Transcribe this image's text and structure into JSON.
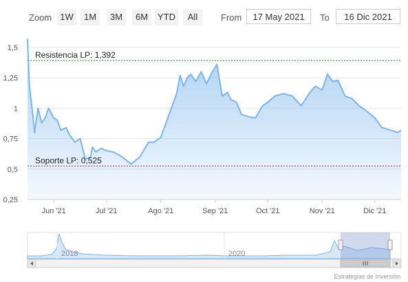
{
  "toolbar": {
    "zoom_label": "Zoom",
    "buttons": [
      "1W",
      "1M",
      "3M",
      "6M",
      "YTD",
      "All"
    ],
    "from_label": "From",
    "from_value": "17 May 2021",
    "to_label": "To",
    "to_value": "16 Dic 2021"
  },
  "credit": "Estrategias de Inversión",
  "navigator": {
    "labels": [
      "2018",
      "2020"
    ],
    "selected_range": [
      "2021-05-17",
      "2021-12-16"
    ]
  },
  "colors": {
    "series_line": "#7cb5ec",
    "resistance": "#2e7d32",
    "support": "#b71c3c"
  },
  "chart_data": {
    "type": "area",
    "x_start": "2021-05-17",
    "x_end": "2021-12-16",
    "ylim": [
      0.25,
      1.55
    ],
    "yticks": [
      0.25,
      0.5,
      0.75,
      1,
      1.25,
      1.5
    ],
    "ytick_labels": [
      "0,25",
      "0,5",
      "0,75",
      "1",
      "1,25",
      "1,5"
    ],
    "xticks": [
      "2021-06-01",
      "2021-07-01",
      "2021-08-01",
      "2021-09-01",
      "2021-10-01",
      "2021-11-01",
      "2021-12-01"
    ],
    "xtick_labels": [
      "Jun '21",
      "Jul '21",
      "Ago '21",
      "Sep '21",
      "Oct '21",
      "Nov '21",
      "Dic '21"
    ],
    "grid": true,
    "plot_lines": [
      {
        "label": "Resistencia LP: 1,392",
        "value": 1.392,
        "style": "dashed"
      },
      {
        "label": "Soporte LP: 0,525",
        "value": 0.525,
        "style": "dashed"
      }
    ],
    "series": [
      {
        "x": [
          "2021-05-17",
          "2021-05-18",
          "2021-05-19",
          "2021-05-20",
          "2021-05-21",
          "2021-05-23",
          "2021-05-25",
          "2021-05-27",
          "2021-05-29",
          "2021-06-01",
          "2021-06-03",
          "2021-06-05",
          "2021-06-08",
          "2021-06-10",
          "2021-06-13",
          "2021-06-16",
          "2021-06-19",
          "2021-06-22",
          "2021-06-23",
          "2021-06-25",
          "2021-06-28",
          "2021-07-01",
          "2021-07-05",
          "2021-07-10",
          "2021-07-15",
          "2021-07-20",
          "2021-07-25",
          "2021-07-28",
          "2021-08-01",
          "2021-08-05",
          "2021-08-10",
          "2021-08-12",
          "2021-08-14",
          "2021-08-16",
          "2021-08-18",
          "2021-08-21",
          "2021-08-24",
          "2021-08-27",
          "2021-08-30",
          "2021-09-02",
          "2021-09-05",
          "2021-09-08",
          "2021-09-10",
          "2021-09-13",
          "2021-09-16",
          "2021-09-20",
          "2021-09-24",
          "2021-09-28",
          "2021-10-01",
          "2021-10-05",
          "2021-10-10",
          "2021-10-15",
          "2021-10-20",
          "2021-10-25",
          "2021-10-28",
          "2021-11-01",
          "2021-11-04",
          "2021-11-07",
          "2021-11-10",
          "2021-11-14",
          "2021-11-18",
          "2021-11-22",
          "2021-11-26",
          "2021-12-01",
          "2021-12-05",
          "2021-12-10",
          "2021-12-14",
          "2021-12-16"
        ],
        "y": [
          1.57,
          1.2,
          1.07,
          0.95,
          0.8,
          1.0,
          0.88,
          0.92,
          1.0,
          0.92,
          0.9,
          0.82,
          0.84,
          0.78,
          0.72,
          0.75,
          0.58,
          0.6,
          0.68,
          0.64,
          0.67,
          0.65,
          0.64,
          0.6,
          0.54,
          0.6,
          0.72,
          0.72,
          0.76,
          0.92,
          1.12,
          1.27,
          1.18,
          1.25,
          1.28,
          1.22,
          1.3,
          1.2,
          1.29,
          1.36,
          1.1,
          1.13,
          1.07,
          1.05,
          0.95,
          0.93,
          0.92,
          1.02,
          1.05,
          1.1,
          1.12,
          1.1,
          1.02,
          1.13,
          1.18,
          1.15,
          1.28,
          1.22,
          1.23,
          1.1,
          1.08,
          1.02,
          0.98,
          0.92,
          0.84,
          0.82,
          0.8,
          0.82
        ]
      }
    ]
  }
}
